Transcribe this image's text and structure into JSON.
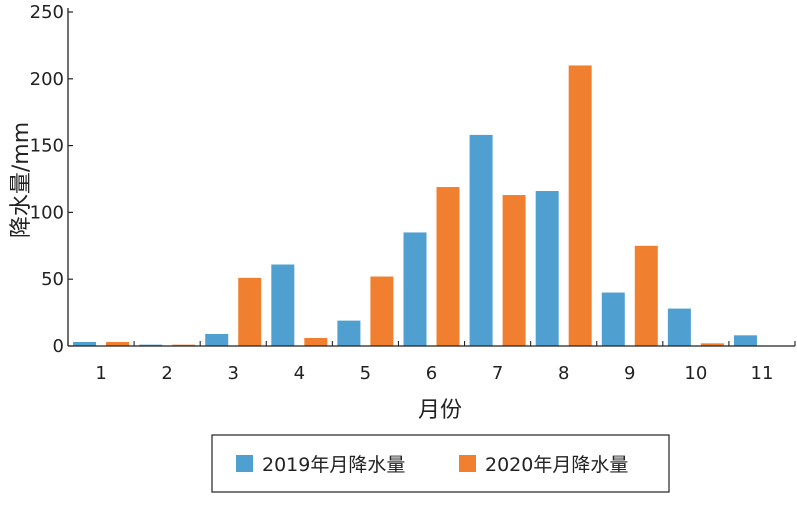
{
  "chart_data": {
    "type": "bar",
    "xlabel": "月份",
    "ylabel": "降水量/mm",
    "categories": [
      "1",
      "2",
      "3",
      "4",
      "5",
      "6",
      "7",
      "8",
      "9",
      "10",
      "11"
    ],
    "ylim": [
      0,
      250
    ],
    "yticks": [
      "0",
      "50",
      "100",
      "150",
      "200",
      "250"
    ],
    "series": [
      {
        "name": "2019年月降水量",
        "color": "#4f9fd1",
        "values": [
          3,
          1,
          9,
          61,
          19,
          85,
          158,
          116,
          40,
          28,
          8
        ]
      },
      {
        "name": "2020年月降水量",
        "color": "#f08030",
        "values": [
          3,
          1,
          51,
          6,
          52,
          119,
          113,
          210,
          75,
          2,
          0
        ]
      }
    ],
    "grid": false,
    "legend_position": "bottom"
  }
}
